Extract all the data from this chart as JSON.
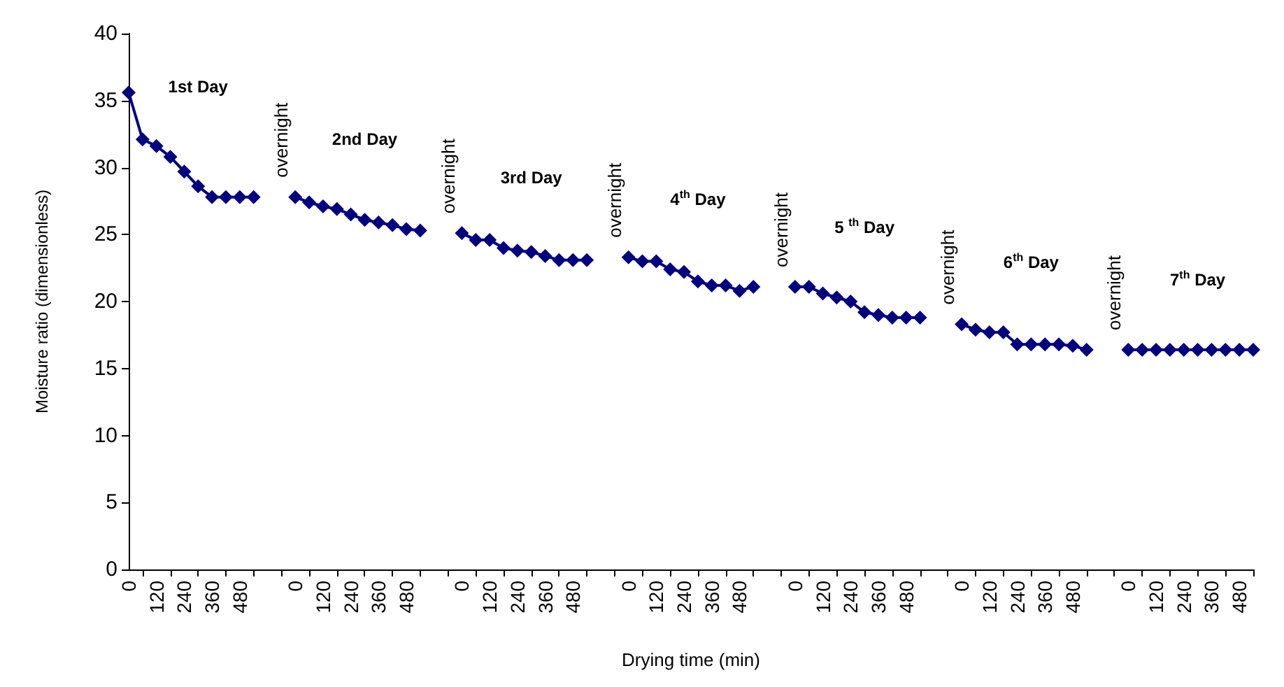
{
  "chart_data": {
    "type": "line",
    "xlabel": "Drying time (min)",
    "ylabel": "Moisture ratio (dimensionless)",
    "categories": [
      "0",
      null,
      "120",
      null,
      "240",
      null,
      "360",
      null,
      "480",
      null,
      null,
      null,
      "0",
      null,
      "120",
      null,
      "240",
      null,
      "360",
      null,
      "480",
      null,
      null,
      null,
      "0",
      null,
      "120",
      null,
      "240",
      null,
      "360",
      null,
      "480",
      null,
      null,
      null,
      "0",
      null,
      "120",
      null,
      "240",
      null,
      "360",
      null,
      "480",
      null,
      null,
      null,
      "0",
      null,
      "120",
      null,
      "240",
      null,
      "360",
      null,
      "480",
      null,
      null,
      null,
      "0",
      null,
      "120",
      null,
      "240",
      null,
      "360",
      null,
      "480",
      null,
      null,
      null,
      "0",
      null,
      "120",
      null,
      "240",
      null,
      "360",
      null,
      "480",
      null
    ],
    "series": [
      {
        "color": "#000080",
        "values": [
          35.6,
          32.1,
          31.6,
          30.8,
          29.7,
          28.6,
          27.8,
          27.8,
          27.8,
          27.8,
          null,
          null,
          27.8,
          27.4,
          27.1,
          26.9,
          26.5,
          26.1,
          25.9,
          25.7,
          25.4,
          25.3,
          null,
          null,
          25.1,
          24.6,
          24.6,
          24.0,
          23.8,
          23.7,
          23.4,
          23.1,
          23.1,
          23.1,
          null,
          null,
          23.3,
          23.0,
          23.0,
          22.4,
          22.2,
          21.5,
          21.2,
          21.2,
          20.8,
          21.1,
          null,
          null,
          21.1,
          21.1,
          20.6,
          20.3,
          20.0,
          19.2,
          19.0,
          18.8,
          18.8,
          18.8,
          null,
          null,
          18.3,
          17.9,
          17.7,
          17.7,
          16.8,
          16.8,
          16.8,
          16.8,
          16.7,
          16.4,
          null,
          null,
          16.4,
          16.4,
          16.4,
          16.4,
          16.4,
          16.4,
          16.4,
          16.4,
          16.4,
          16.4
        ]
      }
    ],
    "ylim": [
      0,
      40
    ],
    "yticks": [
      0,
      5,
      10,
      15,
      20,
      25,
      30,
      35,
      40
    ],
    "marker": "diamond",
    "line_style": "solid",
    "annotations": [
      "1st Day",
      "overnight",
      "2nd Day",
      "overnight",
      "3rd Day",
      "overnight",
      "4$^{th}$ Day",
      "overnight",
      "5 $^{th}$ Day",
      "overnight",
      "6$^{th}$ Day",
      "overnight",
      "7$^{th}$ Day"
    ]
  }
}
